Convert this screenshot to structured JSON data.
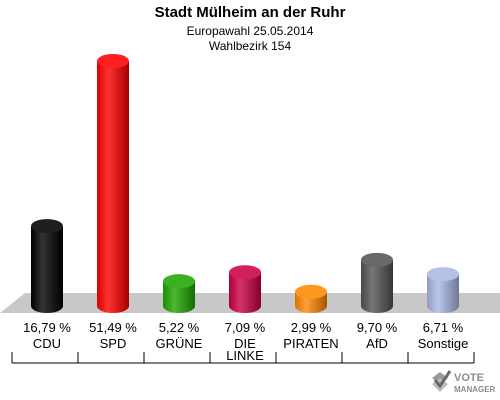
{
  "title": "Stadt Mülheim an der Ruhr",
  "subtitle1": "Europawahl 25.05.2014",
  "subtitle2": "Wahlbezirk 154",
  "logo": {
    "word1": "VOTE",
    "word2": "MANAGER",
    "icon": "check-box-icon"
  },
  "chart_data": {
    "type": "bar",
    "title": "Stadt Mülheim an der Ruhr",
    "categories": [
      "CDU",
      "SPD",
      "GRÜNE",
      "DIE LINKE",
      "PIRATEN",
      "AfD",
      "Sonstige"
    ],
    "category_lines": [
      [
        "CDU"
      ],
      [
        "SPD"
      ],
      [
        "GRÜNE"
      ],
      [
        "DIE",
        "LINKE"
      ],
      [
        "PIRATEN"
      ],
      [
        "AfD"
      ],
      [
        "Sonstige"
      ]
    ],
    "values": [
      16.79,
      51.49,
      5.22,
      7.09,
      2.99,
      9.7,
      6.71
    ],
    "value_labels": [
      "16,79 %",
      "51,49 %",
      "5,22 %",
      "7,09 %",
      "2,99 %",
      "9,70 %",
      "6,71 %"
    ],
    "unit": "%",
    "colors": [
      "#000000",
      "#ff0000",
      "#1fa800",
      "#cc0044",
      "#ff8800",
      "#555555",
      "#aab8e6"
    ],
    "xlabel": "",
    "ylabel": "",
    "ylim": [
      0,
      51.49
    ],
    "grid": false,
    "legend": "none"
  }
}
